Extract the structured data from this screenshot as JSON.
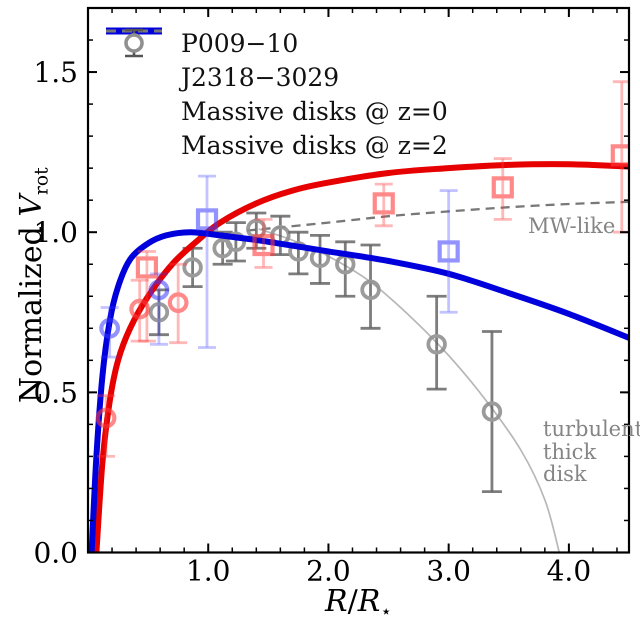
{
  "figure": {
    "legend": {
      "items": [
        {
          "label": "P009−10",
          "swatch": "red-line"
        },
        {
          "label": "J2318−3029",
          "swatch": "blue-line"
        },
        {
          "label": "Massive disks @ z=0",
          "swatch": "gray-dashed-line"
        },
        {
          "label": "Massive disks @ z=2",
          "swatch": "gray-circle-errorbar"
        }
      ]
    },
    "annotations": {
      "mw_like": "MW-like",
      "turbulent_line1": "turbulent",
      "turbulent_line2": "thick disk"
    },
    "axis": {
      "ylabel_parts": {
        "prefix": "Normalized",
        "variable": "V",
        "subscript": "rot"
      },
      "xlabel_parts": {
        "numerator": "R",
        "slash": "/",
        "denominator": "R",
        "subscript": "⋆"
      }
    }
  },
  "chart_data": {
    "type": "line",
    "title": "",
    "xlabel": "R/R⋆",
    "ylabel": "Normalized Vrot",
    "xlim": [
      0,
      4.5
    ],
    "ylim": [
      0,
      1.7
    ],
    "grid": false,
    "legend_position": "upper-left-inside",
    "xticks": [
      {
        "v": 1.0,
        "label": "1.0"
      },
      {
        "v": 2.0,
        "label": "2.0"
      },
      {
        "v": 3.0,
        "label": "3.0"
      },
      {
        "v": 4.0,
        "label": "4.0"
      }
    ],
    "yticks": [
      {
        "v": 0.0,
        "label": "0.0"
      },
      {
        "v": 0.5,
        "label": "0.5"
      },
      {
        "v": 1.0,
        "label": "1.0"
      },
      {
        "v": 1.5,
        "label": "1.5"
      }
    ],
    "x_minor_step": 0.2,
    "y_minor_step": 0.1,
    "colors": {
      "red_line": "#e60000",
      "blue_line": "#0000dd",
      "dashed_gray": "#787878",
      "thin_gray": "#b8b8b8",
      "red_marker": "#ff3b3b",
      "blue_marker": "#3b3bff",
      "gray_marker_ring": "#909090",
      "gray_errorbar": "#555555",
      "annotation_gray": "#858585"
    },
    "series": [
      {
        "name": "turbulent thick disk model",
        "style": "thin-solid",
        "points": [
          [
            1.42,
            1.01
          ],
          [
            1.7,
            0.975
          ],
          [
            2.0,
            0.925
          ],
          [
            2.35,
            0.845
          ],
          [
            2.7,
            0.73
          ],
          [
            3.0,
            0.615
          ],
          [
            3.3,
            0.48
          ],
          [
            3.6,
            0.32
          ],
          [
            3.8,
            0.165
          ],
          [
            3.92,
            0.0
          ]
        ]
      },
      {
        "name": "Massive disks @ z=0",
        "style": "dashed",
        "points": [
          [
            1.32,
            1.005
          ],
          [
            2.0,
            1.03
          ],
          [
            2.5,
            1.05
          ],
          [
            3.0,
            1.065
          ],
          [
            3.5,
            1.078
          ],
          [
            4.0,
            1.088
          ],
          [
            4.5,
            1.095
          ]
        ]
      },
      {
        "name": "P009−10",
        "style": "thick-red",
        "points": [
          [
            0.07,
            0.0
          ],
          [
            0.12,
            0.28
          ],
          [
            0.18,
            0.47
          ],
          [
            0.25,
            0.6
          ],
          [
            0.35,
            0.7
          ],
          [
            0.5,
            0.8
          ],
          [
            0.7,
            0.9
          ],
          [
            0.9,
            0.97
          ],
          [
            1.1,
            1.03
          ],
          [
            1.4,
            1.09
          ],
          [
            1.7,
            1.13
          ],
          [
            2.0,
            1.155
          ],
          [
            2.5,
            1.185
          ],
          [
            3.0,
            1.2
          ],
          [
            3.5,
            1.21
          ],
          [
            4.0,
            1.212
          ],
          [
            4.5,
            1.205
          ]
        ]
      },
      {
        "name": "J2318−3029",
        "style": "thick-blue",
        "points": [
          [
            0.03,
            0.0
          ],
          [
            0.07,
            0.3
          ],
          [
            0.12,
            0.55
          ],
          [
            0.18,
            0.72
          ],
          [
            0.25,
            0.83
          ],
          [
            0.35,
            0.915
          ],
          [
            0.5,
            0.965
          ],
          [
            0.65,
            0.99
          ],
          [
            0.85,
            1.0
          ],
          [
            1.1,
            0.99
          ],
          [
            1.5,
            0.97
          ],
          [
            2.0,
            0.94
          ],
          [
            2.5,
            0.91
          ],
          [
            3.0,
            0.87
          ],
          [
            3.5,
            0.81
          ],
          [
            4.0,
            0.745
          ],
          [
            4.5,
            0.67
          ]
        ]
      }
    ],
    "markers": [
      {
        "name": "Massive disks @ z=2",
        "shape": "circle",
        "color_key": "gray",
        "points": [
          {
            "x": 0.59,
            "y": 0.75,
            "lo": 0.68,
            "hi": 0.82
          },
          {
            "x": 0.87,
            "y": 0.89,
            "lo": 0.83,
            "hi": 0.95
          },
          {
            "x": 1.12,
            "y": 0.95,
            "lo": 0.9,
            "hi": 1.0
          },
          {
            "x": 1.23,
            "y": 0.97,
            "lo": 0.91,
            "hi": 1.03
          },
          {
            "x": 1.4,
            "y": 1.01,
            "lo": 0.95,
            "hi": 1.06
          },
          {
            "x": 1.6,
            "y": 0.99,
            "lo": 0.93,
            "hi": 1.05
          },
          {
            "x": 1.75,
            "y": 0.94,
            "lo": 0.87,
            "hi": 1.0
          },
          {
            "x": 1.93,
            "y": 0.92,
            "lo": 0.84,
            "hi": 0.99
          },
          {
            "x": 2.14,
            "y": 0.9,
            "lo": 0.8,
            "hi": 0.97
          },
          {
            "x": 2.35,
            "y": 0.82,
            "lo": 0.7,
            "hi": 0.96
          },
          {
            "x": 2.9,
            "y": 0.65,
            "lo": 0.51,
            "hi": 0.8
          },
          {
            "x": 3.36,
            "y": 0.44,
            "lo": 0.19,
            "hi": 0.69
          }
        ]
      },
      {
        "name": "P009−10 circles",
        "shape": "circle",
        "color_key": "red",
        "points": [
          {
            "x": 0.15,
            "y": 0.42,
            "lo": 0.3,
            "hi": 0.49
          },
          {
            "x": 0.43,
            "y": 0.76,
            "lo": 0.66,
            "hi": 0.85
          },
          {
            "x": 0.75,
            "y": 0.78,
            "lo": 0.655,
            "hi": 0.9
          }
        ]
      },
      {
        "name": "P009−10 squares",
        "shape": "square",
        "color_key": "red",
        "points": [
          {
            "x": 0.49,
            "y": 0.89,
            "lo": 0.66,
            "hi": 0.94
          },
          {
            "x": 1.46,
            "y": 0.96,
            "lo": 0.89,
            "hi": 1.04
          },
          {
            "x": 2.46,
            "y": 1.09,
            "lo": 1.02,
            "hi": 1.15
          },
          {
            "x": 3.45,
            "y": 1.14,
            "lo": 1.04,
            "hi": 1.23
          },
          {
            "x": 4.44,
            "y": 1.24,
            "lo": 1.0,
            "hi": 1.47
          }
        ]
      },
      {
        "name": "J2318−3029 circles",
        "shape": "circle",
        "color_key": "blue",
        "points": [
          {
            "x": 0.18,
            "y": 0.7,
            "lo": 0.61,
            "hi": 0.765
          },
          {
            "x": 0.59,
            "y": 0.82,
            "lo": 0.65,
            "hi": 0.87
          }
        ]
      },
      {
        "name": "J2318−3029 squares",
        "shape": "square",
        "color_key": "blue",
        "points": [
          {
            "x": 0.99,
            "y": 1.04,
            "lo": 0.64,
            "hi": 1.175
          },
          {
            "x": 3.0,
            "y": 0.94,
            "lo": 0.75,
            "hi": 1.13
          }
        ]
      }
    ]
  }
}
